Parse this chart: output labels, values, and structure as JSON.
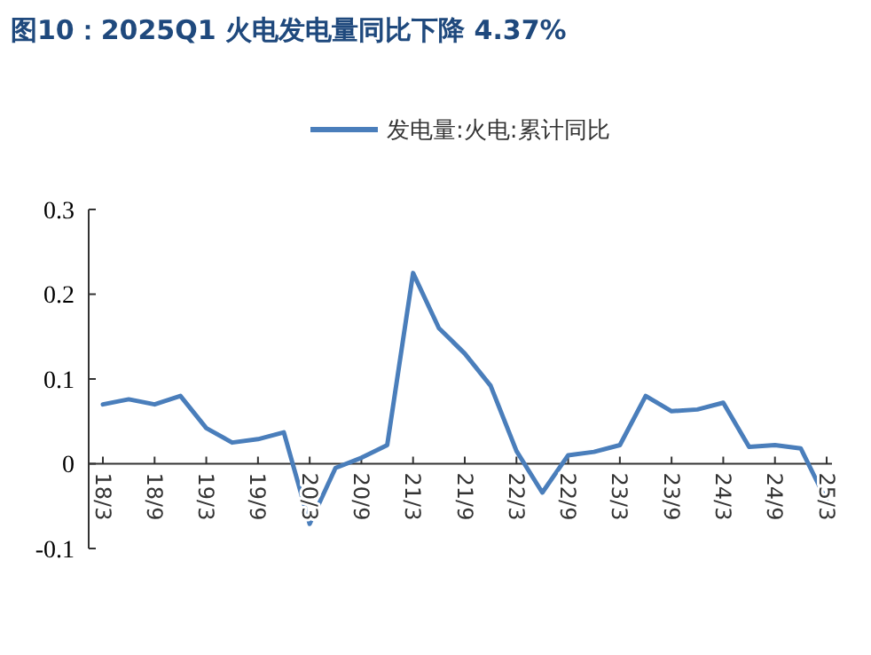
{
  "chart_data": {
    "type": "line",
    "title": "图10：2025Q1 火电发电量同比下降 4.37%",
    "categories": [
      "18/3",
      null,
      "18/9",
      null,
      "19/3",
      null,
      "19/9",
      null,
      "20/3",
      null,
      "20/9",
      null,
      "21/3",
      null,
      "21/9",
      null,
      "22/3",
      null,
      "22/9",
      null,
      "23/3",
      null,
      "23/9",
      null,
      "24/3",
      null,
      "24/9",
      null,
      "25/3"
    ],
    "series": [
      {
        "name": "发电量:火电:累计同比",
        "color": "#4a7ebb",
        "values": [
          0.07,
          0.076,
          0.07,
          0.08,
          0.042,
          0.025,
          0.029,
          0.037,
          -0.071,
          -0.005,
          0.007,
          0.022,
          0.225,
          0.16,
          0.13,
          0.092,
          0.015,
          -0.034,
          0.01,
          0.014,
          0.022,
          0.08,
          0.062,
          0.064,
          0.072,
          0.02,
          0.022,
          0.018,
          -0.044
        ]
      }
    ],
    "ylim": [
      -0.1,
      0.3
    ],
    "yticks": [
      -0.1,
      0,
      0.1,
      0.2,
      0.3
    ],
    "legend": "top",
    "grid": false,
    "marker": "none",
    "line_style": "solid"
  }
}
